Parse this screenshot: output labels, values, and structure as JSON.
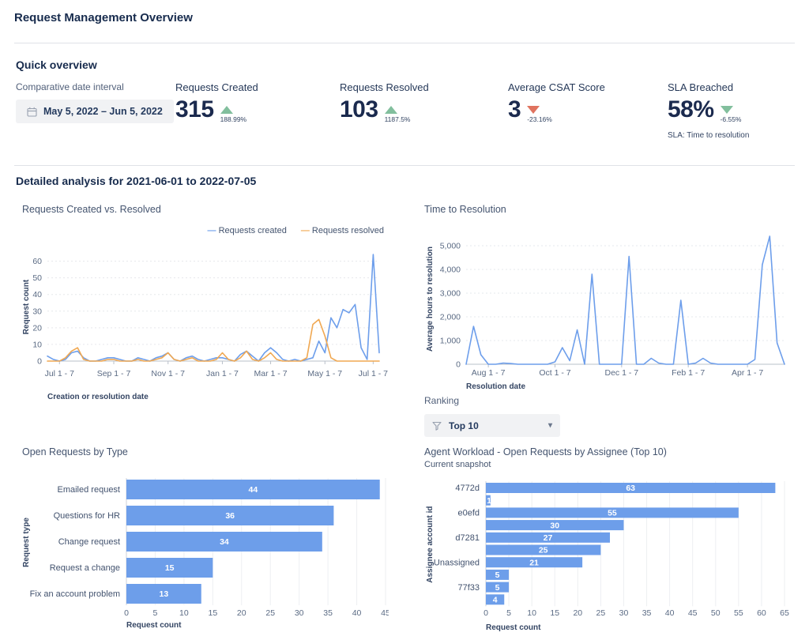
{
  "header": {
    "title": "Request Management Overview"
  },
  "quick_overview": {
    "heading": "Quick overview",
    "date_interval": {
      "label": "Comparative date interval",
      "value": "May 5, 2022 – Jun 5, 2022"
    },
    "kpis": [
      {
        "label": "Requests Created",
        "value": "315",
        "delta": "188.99%",
        "trend": "up",
        "trend_color": "green"
      },
      {
        "label": "Requests Resolved",
        "value": "103",
        "delta": "1187.5%",
        "trend": "up",
        "trend_color": "green"
      },
      {
        "label": "Average CSAT Score",
        "value": "3",
        "delta": "-23.16%",
        "trend": "down",
        "trend_color": "red"
      },
      {
        "label": "SLA Breached",
        "value": "58%",
        "delta": "-6.55%",
        "trend": "down",
        "trend_color": "green",
        "footnote": "SLA: Time to resolution"
      }
    ]
  },
  "detailed": {
    "heading": "Detailed analysis for 2021-06-01 to 2022-07-05"
  },
  "ranking": {
    "label": "Ranking",
    "selected": "Top 10"
  },
  "colors": {
    "accent_blue": "#6d9eeb",
    "accent_orange": "#f0a852",
    "positive_green": "#82bf9d",
    "negative_red": "#e0735f",
    "navy": "#1b2a4e"
  },
  "chart_data": [
    {
      "id": "created_vs_resolved",
      "type": "line",
      "title": "Requests Created vs. Resolved",
      "xlabel": "Creation or resolution date",
      "ylabel": "Request count",
      "ylim": [
        0,
        65
      ],
      "yticks": [
        0,
        10,
        20,
        30,
        40,
        50,
        60
      ],
      "grid": "horizontal-dashed",
      "legend_position": "top-right",
      "xticks": [
        {
          "label": "Jul 1 - 7",
          "index": 2
        },
        {
          "label": "Sep 1 - 7",
          "index": 11
        },
        {
          "label": "Nov 1 - 7",
          "index": 20
        },
        {
          "label": "Jan 1 - 7",
          "index": 29
        },
        {
          "label": "Mar 1 - 7",
          "index": 37
        },
        {
          "label": "May 1 - 7",
          "index": 46
        },
        {
          "label": "Jul 1 - 7",
          "index": 54
        }
      ],
      "series": [
        {
          "name": "Requests created",
          "color": "#6d9eeb",
          "values": [
            3,
            1,
            0,
            1,
            5,
            6,
            2,
            0,
            0,
            1,
            2,
            2,
            1,
            0,
            0,
            2,
            1,
            0,
            2,
            3,
            5,
            1,
            0,
            2,
            3,
            1,
            0,
            1,
            2,
            2,
            1,
            0,
            4,
            6,
            3,
            0,
            5,
            8,
            5,
            1,
            0,
            1,
            0,
            1,
            2,
            12,
            5,
            26,
            20,
            31,
            29,
            34,
            8,
            1,
            64,
            5
          ]
        },
        {
          "name": "Requests resolved",
          "color": "#f0a852",
          "values": [
            0,
            0,
            0,
            2,
            6,
            8,
            1,
            0,
            0,
            0,
            1,
            1,
            0,
            0,
            0,
            1,
            0,
            0,
            1,
            2,
            5,
            1,
            0,
            1,
            2,
            0,
            0,
            0,
            1,
            5,
            1,
            0,
            2,
            6,
            1,
            0,
            2,
            5,
            1,
            0,
            0,
            0,
            0,
            2,
            22,
            25,
            15,
            2,
            0,
            0,
            0,
            0,
            0,
            0,
            0,
            0
          ]
        }
      ]
    },
    {
      "id": "time_to_resolution",
      "type": "line",
      "title": "Time to Resolution",
      "xlabel": "Resolution date",
      "ylabel": "Average hours to resolution",
      "ylim": [
        0,
        5500
      ],
      "yticks": [
        0,
        1000,
        2000,
        3000,
        4000,
        5000
      ],
      "grid": "horizontal-dashed",
      "xticks": [
        {
          "label": "Aug 1 - 7",
          "index": 3
        },
        {
          "label": "Oct 1 - 7",
          "index": 12
        },
        {
          "label": "Dec 1 - 7",
          "index": 21
        },
        {
          "label": "Feb 1 - 7",
          "index": 30
        },
        {
          "label": "Apr 1 - 7",
          "index": 38
        }
      ],
      "series": [
        {
          "name": "Average hours to resolution",
          "color": "#6d9eeb",
          "values": [
            0,
            1600,
            400,
            0,
            0,
            50,
            30,
            0,
            0,
            0,
            0,
            0,
            100,
            700,
            150,
            1450,
            0,
            3800,
            0,
            0,
            0,
            0,
            4550,
            0,
            0,
            250,
            50,
            0,
            0,
            2700,
            0,
            50,
            250,
            50,
            0,
            0,
            0,
            0,
            0,
            200,
            4200,
            5400,
            900,
            0
          ]
        }
      ]
    },
    {
      "id": "open_requests_by_type",
      "type": "bar",
      "orientation": "horizontal",
      "title": "Open Requests by Type",
      "xlabel": "Request count",
      "ylabel": "Request type",
      "bar_color": "#6d9eea",
      "xlim": [
        0,
        45
      ],
      "xticks": [
        0,
        5,
        10,
        15,
        20,
        25,
        30,
        35,
        40,
        45
      ],
      "categories": [
        "Emailed request",
        "Questions for HR",
        "Change request",
        "Request a change",
        "Fix an account problem"
      ],
      "values": [
        44,
        36,
        34,
        15,
        13
      ]
    },
    {
      "id": "agent_workload",
      "type": "bar",
      "orientation": "horizontal",
      "title": "Agent Workload - Open Requests by Assignee (Top 10)",
      "subtitle": "Current snapshot",
      "xlabel": "Request count",
      "ylabel": "Assignee account id",
      "bar_color": "#6d9eea",
      "xlim": [
        0,
        65
      ],
      "xticks": [
        0,
        5,
        10,
        15,
        20,
        25,
        30,
        35,
        40,
        45,
        50,
        55,
        60,
        65
      ],
      "categories": [
        "4772d",
        "",
        "e0efd",
        "",
        "d7281",
        "",
        "Unassigned",
        "",
        "77f33",
        ""
      ],
      "values": [
        63,
        1,
        55,
        30,
        27,
        25,
        21,
        5,
        5,
        4
      ]
    }
  ]
}
